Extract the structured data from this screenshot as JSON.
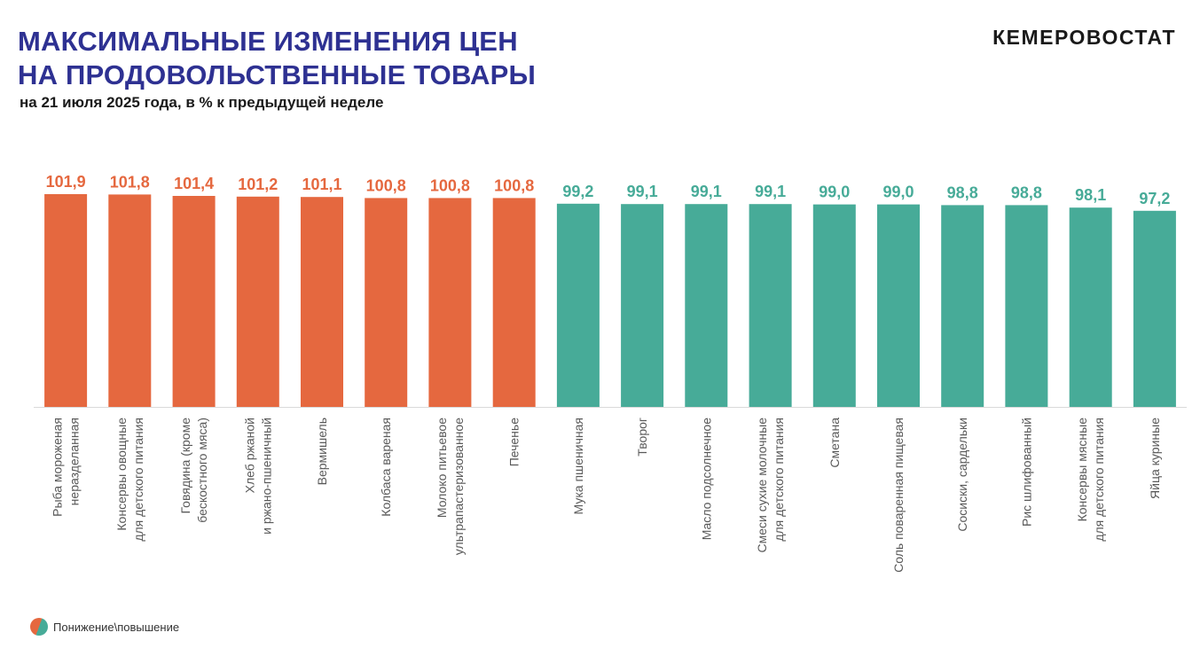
{
  "header": {
    "title_line1": "МАКСИМАЛЬНЫЕ ИЗМЕНЕНИЯ ЦЕН",
    "title_line2": "НА ПРОДОВОЛЬСТВЕННЫЕ ТОВАРЫ",
    "subtitle": "на 21 июля 2025 года, в % к предыдущей неделе",
    "brand": "КЕМЕРОВОСТАТ"
  },
  "legend": {
    "label": "Понижение\\повышение"
  },
  "colors": {
    "increase": "#e5683f",
    "decrease": "#47ab98",
    "title": "#2e3192",
    "axis_label": "#595959"
  },
  "chart_data": {
    "type": "bar",
    "title": "МАКСИМАЛЬНЫЕ ИЗМЕНЕНИЯ ЦЕН НА ПРОДОВОЛЬСТВЕННЫЕ ТОВАРЫ",
    "subtitle": "на 21 июля 2025 года, в % к предыдущей неделе",
    "xlabel": "",
    "ylabel": "",
    "grid": false,
    "categories": [
      [
        "Рыба мороженая",
        "неразделанная"
      ],
      [
        "Консервы овощные",
        "для детского питания"
      ],
      [
        "Говядина (кроме",
        "бескостного мяса)"
      ],
      [
        "Хлеб ржаной",
        "и ржано-пшеничный"
      ],
      [
        "Вермишель"
      ],
      [
        "Колбаса вареная"
      ],
      [
        "Молоко питьевое",
        "ультрапастеризованное"
      ],
      [
        "Печенье"
      ],
      [
        "Мука пшеничная"
      ],
      [
        "Творог"
      ],
      [
        "Масло подсолнечное"
      ],
      [
        "Смеси сухие молочные",
        "для детского питания"
      ],
      [
        "Сметана"
      ],
      [
        "Соль поваренная пищевая"
      ],
      [
        "Сосиски, сардельки"
      ],
      [
        "Рис шлифованный"
      ],
      [
        "Консервы мясные",
        "для детского питания"
      ],
      [
        "Яйца куриные"
      ]
    ],
    "values": [
      101.9,
      101.8,
      101.4,
      101.2,
      101.1,
      100.8,
      100.8,
      100.8,
      99.2,
      99.1,
      99.1,
      99.1,
      99.0,
      99.0,
      98.8,
      98.8,
      98.1,
      97.2
    ],
    "value_labels": [
      "101,9",
      "101,8",
      "101,4",
      "101,2",
      "101,1",
      "100,8",
      "100,8",
      "100,8",
      "99,2",
      "99,1",
      "99,1",
      "99,1",
      "99,0",
      "99,0",
      "98,8",
      "98,8",
      "98,1",
      "97,2"
    ],
    "direction": [
      "up",
      "up",
      "up",
      "up",
      "up",
      "up",
      "up",
      "up",
      "down",
      "down",
      "down",
      "down",
      "down",
      "down",
      "down",
      "down",
      "down",
      "down"
    ]
  }
}
